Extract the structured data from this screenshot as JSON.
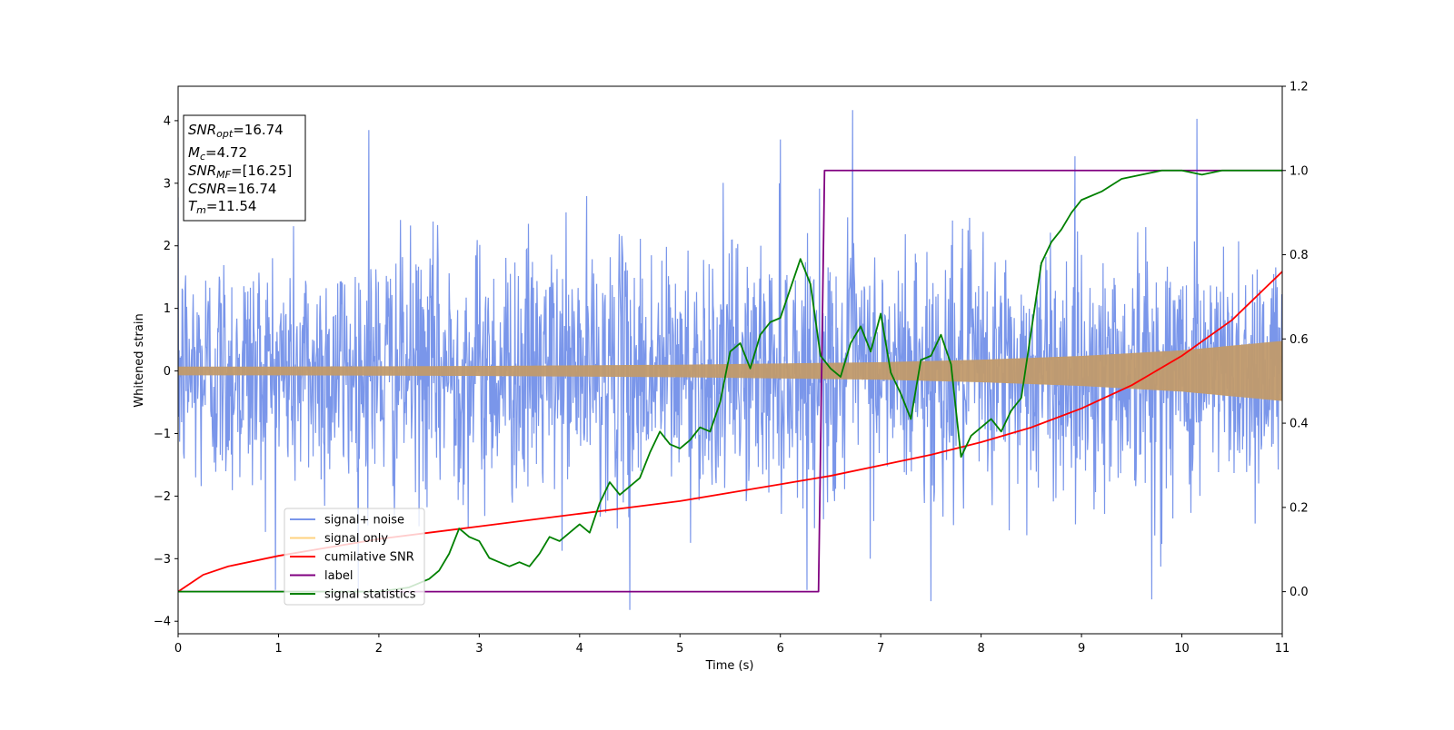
{
  "chart_data": {
    "type": "line",
    "xlabel": "Time (s)",
    "ylabel": "Whitened strain",
    "xlim": [
      0,
      11
    ],
    "ylim_left": [
      -4.2,
      4.55
    ],
    "ylim_right": [
      -0.1,
      1.2
    ],
    "x_ticks": [
      0,
      1,
      2,
      3,
      4,
      5,
      6,
      7,
      8,
      9,
      10,
      11
    ],
    "y_left_ticks": [
      -4,
      -3,
      -2,
      -1,
      0,
      1,
      2,
      3,
      4
    ],
    "y_right_ticks": [
      0.0,
      0.2,
      0.4,
      0.6,
      0.8,
      1.0,
      1.2
    ],
    "grid": false,
    "legend_position": "lower-left",
    "annotation_box": {
      "position": "top-left",
      "lines": [
        {
          "base": "SNR",
          "sub": "opt",
          "value": "=16.74"
        },
        {
          "base": "M",
          "sub": "c",
          "value": "=4.72"
        },
        {
          "base": "SNR",
          "sub": "MF",
          "value": "=[16.25]"
        },
        {
          "base": "CSNR",
          "sub": "",
          "value": "=16.74"
        },
        {
          "base": "T",
          "sub": "m",
          "value": "=11.54"
        }
      ]
    },
    "series": [
      {
        "name": "signal+ noise",
        "axis": "left",
        "color": "#4169e1",
        "opacity": 0.7,
        "kind": "noise",
        "description_values": {
          "t_start": 0,
          "t_end": 11,
          "samples": 2200,
          "noise_std": 1.0,
          "min": -3.82,
          "max": 4.17
        },
        "peaks": [
          [
            1.9,
            3.85
          ],
          [
            6.0,
            3.7
          ],
          [
            6.72,
            4.17
          ],
          [
            10.15,
            4.03
          ],
          [
            4.5,
            -3.82
          ],
          [
            7.5,
            -3.68
          ],
          [
            9.7,
            -3.65
          ]
        ]
      },
      {
        "name": "signal only",
        "axis": "left",
        "color": "#ffa500",
        "opacity": 0.5,
        "kind": "envelope",
        "x": [
          0,
          1,
          2,
          3,
          4,
          5,
          6,
          7,
          8,
          9,
          10,
          11
        ],
        "amplitude": [
          0.07,
          0.07,
          0.075,
          0.08,
          0.09,
          0.1,
          0.12,
          0.14,
          0.18,
          0.24,
          0.33,
          0.48
        ]
      },
      {
        "name": "cumilative SNR",
        "axis": "right",
        "color": "#ff0000",
        "x": [
          0,
          0.25,
          0.5,
          1,
          1.5,
          2,
          2.5,
          3,
          3.5,
          4,
          4.5,
          5,
          5.5,
          6,
          6.5,
          7,
          7.5,
          8,
          8.5,
          9,
          9.5,
          10,
          10.5,
          11
        ],
        "values": [
          0.0,
          0.04,
          0.06,
          0.085,
          0.105,
          0.125,
          0.14,
          0.155,
          0.17,
          0.185,
          0.2,
          0.215,
          0.235,
          0.255,
          0.275,
          0.3,
          0.325,
          0.355,
          0.39,
          0.435,
          0.49,
          0.56,
          0.645,
          0.76
        ]
      },
      {
        "name": "label",
        "axis": "right",
        "color": "#800080",
        "x": [
          0,
          6.38,
          6.44,
          11
        ],
        "values": [
          0.0,
          0.0,
          1.0,
          1.0
        ]
      },
      {
        "name": "signal statistics",
        "axis": "right",
        "color": "#008000",
        "x": [
          0,
          0.5,
          1,
          1.5,
          2,
          2.3,
          2.5,
          2.6,
          2.7,
          2.8,
          2.9,
          3.0,
          3.1,
          3.2,
          3.3,
          3.4,
          3.5,
          3.6,
          3.7,
          3.8,
          3.9,
          4.0,
          4.1,
          4.2,
          4.3,
          4.4,
          4.5,
          4.6,
          4.7,
          4.8,
          4.9,
          5.0,
          5.1,
          5.2,
          5.3,
          5.4,
          5.5,
          5.6,
          5.7,
          5.8,
          5.9,
          6.0,
          6.1,
          6.2,
          6.3,
          6.4,
          6.5,
          6.6,
          6.7,
          6.8,
          6.9,
          7.0,
          7.1,
          7.2,
          7.3,
          7.4,
          7.5,
          7.6,
          7.7,
          7.8,
          7.9,
          8.0,
          8.1,
          8.2,
          8.3,
          8.4,
          8.5,
          8.6,
          8.7,
          8.8,
          8.9,
          9.0,
          9.2,
          9.4,
          9.6,
          9.8,
          10.0,
          10.2,
          10.4,
          10.6,
          10.8,
          11.0
        ],
        "values": [
          0.0,
          0.0,
          0.0,
          0.0,
          0.0,
          0.01,
          0.03,
          0.05,
          0.09,
          0.15,
          0.13,
          0.12,
          0.08,
          0.07,
          0.06,
          0.07,
          0.06,
          0.09,
          0.13,
          0.12,
          0.14,
          0.16,
          0.14,
          0.21,
          0.26,
          0.23,
          0.25,
          0.27,
          0.33,
          0.38,
          0.35,
          0.34,
          0.36,
          0.39,
          0.38,
          0.45,
          0.57,
          0.59,
          0.53,
          0.61,
          0.64,
          0.65,
          0.72,
          0.79,
          0.73,
          0.56,
          0.53,
          0.51,
          0.59,
          0.63,
          0.57,
          0.66,
          0.52,
          0.47,
          0.41,
          0.55,
          0.56,
          0.61,
          0.54,
          0.32,
          0.37,
          0.39,
          0.41,
          0.38,
          0.43,
          0.46,
          0.62,
          0.78,
          0.83,
          0.86,
          0.9,
          0.93,
          0.95,
          0.98,
          0.99,
          1.0,
          1.0,
          0.99,
          1.0,
          1.0,
          1.0,
          1.0
        ]
      }
    ]
  }
}
